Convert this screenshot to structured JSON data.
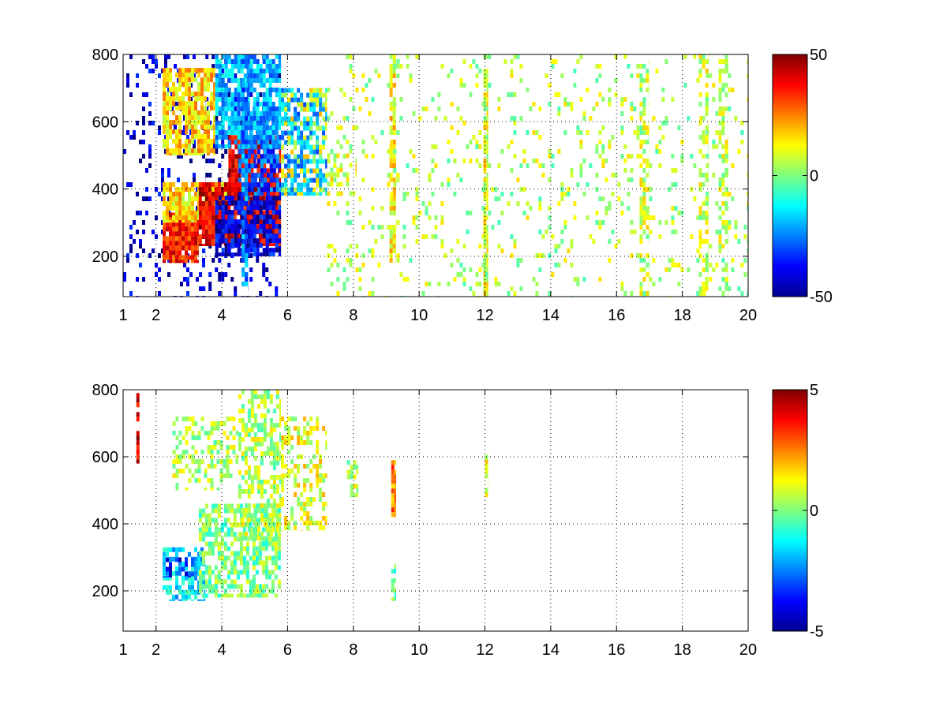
{
  "chart_data": [
    {
      "type": "heatmap",
      "colormap": "jet",
      "xlim": [
        1,
        20
      ],
      "ylim": [
        80,
        800
      ],
      "xticks": [
        1,
        2,
        4,
        6,
        8,
        10,
        12,
        14,
        16,
        18,
        20
      ],
      "yticks": [
        200,
        400,
        600,
        800
      ],
      "grid": true,
      "colorbar": {
        "min": -50,
        "max": 50,
        "ticks": [
          50,
          0,
          -50
        ]
      },
      "structures": [
        {
          "x": [
            1.0,
            3.5
          ],
          "y": [
            80,
            800
          ],
          "value": 0.08,
          "density": 0.15
        },
        {
          "x": [
            3.5,
            5.8
          ],
          "y": [
            80,
            800
          ],
          "value": 0.05,
          "density": 0.18
        },
        {
          "x": [
            2.2,
            3.3
          ],
          "y": [
            180,
            330
          ],
          "value": 0.85,
          "density": 0.95
        },
        {
          "x": [
            2.2,
            4.2
          ],
          "y": [
            300,
            420
          ],
          "value": 0.65,
          "density": 0.85
        },
        {
          "x": [
            3.3,
            5.8
          ],
          "y": [
            230,
            420
          ],
          "value": 0.9,
          "density": 0.9
        },
        {
          "x": [
            3.8,
            5.8
          ],
          "y": [
            200,
            380
          ],
          "value": 0.1,
          "density": 0.8
        },
        {
          "x": [
            4.2,
            5.8
          ],
          "y": [
            380,
            560
          ],
          "value": 0.9,
          "density": 0.8
        },
        {
          "x": [
            4.5,
            5.8
          ],
          "y": [
            380,
            560
          ],
          "value": 0.2,
          "density": 0.6
        },
        {
          "x": [
            2.2,
            3.8
          ],
          "y": [
            500,
            760
          ],
          "value": 0.66,
          "density": 0.8
        },
        {
          "x": [
            3.8,
            5.8
          ],
          "y": [
            520,
            800
          ],
          "value": 0.3,
          "density": 0.75
        },
        {
          "x": [
            5.8,
            7.2
          ],
          "y": [
            380,
            700
          ],
          "value": 0.3,
          "density": 0.6
        },
        {
          "x": [
            5.8,
            7.2
          ],
          "y": [
            380,
            700
          ],
          "value": 0.6,
          "density": 0.25
        },
        {
          "x": [
            7.2,
            8.1
          ],
          "y": [
            380,
            520
          ],
          "value": 0.58,
          "density": 0.35
        },
        {
          "x": [
            4.6,
            4.8
          ],
          "y": [
            80,
            800
          ],
          "value": 0.25,
          "density": 0.7
        },
        {
          "x": [
            9.1,
            9.3
          ],
          "y": [
            180,
            800
          ],
          "value": 0.63,
          "density": 0.7
        },
        {
          "x": [
            11.95,
            12.1
          ],
          "y": [
            80,
            800
          ],
          "value": 0.6,
          "density": 0.9
        },
        {
          "x": [
            7.2,
            20
          ],
          "y": [
            80,
            800
          ],
          "value": 0.55,
          "density": 0.1
        },
        {
          "x": [
            16.7,
            17.0
          ],
          "y": [
            80,
            800
          ],
          "value": 0.57,
          "density": 0.45
        },
        {
          "x": [
            18.5,
            18.8
          ],
          "y": [
            80,
            800
          ],
          "value": 0.57,
          "density": 0.45
        },
        {
          "x": [
            19.1,
            19.4
          ],
          "y": [
            80,
            800
          ],
          "value": 0.57,
          "density": 0.4
        }
      ]
    },
    {
      "type": "heatmap",
      "colormap": "jet",
      "xlim": [
        1,
        20
      ],
      "ylim": [
        80,
        800
      ],
      "xticks": [
        1,
        2,
        4,
        6,
        8,
        10,
        12,
        14,
        16,
        18,
        20
      ],
      "yticks": [
        200,
        400,
        600,
        800
      ],
      "grid": true,
      "colorbar": {
        "min": -5,
        "max": 5,
        "ticks": [
          5,
          0,
          -5
        ]
      },
      "structures": [
        {
          "x": [
            2.2,
            3.5
          ],
          "y": [
            170,
            330
          ],
          "value": 0.35,
          "density": 0.6
        },
        {
          "x": [
            2.2,
            3.2
          ],
          "y": [
            240,
            300
          ],
          "value": 0.15,
          "density": 0.4
        },
        {
          "x": [
            3.3,
            5.8
          ],
          "y": [
            180,
            460
          ],
          "value": 0.5,
          "density": 0.65
        },
        {
          "x": [
            4.5,
            5.8
          ],
          "y": [
            350,
            800
          ],
          "value": 0.55,
          "density": 0.5
        },
        {
          "x": [
            2.5,
            4.5
          ],
          "y": [
            500,
            720
          ],
          "value": 0.55,
          "density": 0.4
        },
        {
          "x": [
            5.8,
            7.2
          ],
          "y": [
            380,
            720
          ],
          "value": 0.6,
          "density": 0.4
        },
        {
          "x": [
            1.4,
            1.5
          ],
          "y": [
            580,
            790
          ],
          "value": 0.9,
          "density": 0.8
        },
        {
          "x": [
            9.15,
            9.3
          ],
          "y": [
            420,
            590
          ],
          "value": 0.75,
          "density": 0.85
        },
        {
          "x": [
            9.15,
            9.3
          ],
          "y": [
            170,
            280
          ],
          "value": 0.45,
          "density": 0.6
        },
        {
          "x": [
            7.8,
            8.15
          ],
          "y": [
            480,
            590
          ],
          "value": 0.55,
          "density": 0.5
        },
        {
          "x": [
            12.0,
            12.1
          ],
          "y": [
            480,
            620
          ],
          "value": 0.6,
          "density": 0.4
        }
      ]
    }
  ]
}
